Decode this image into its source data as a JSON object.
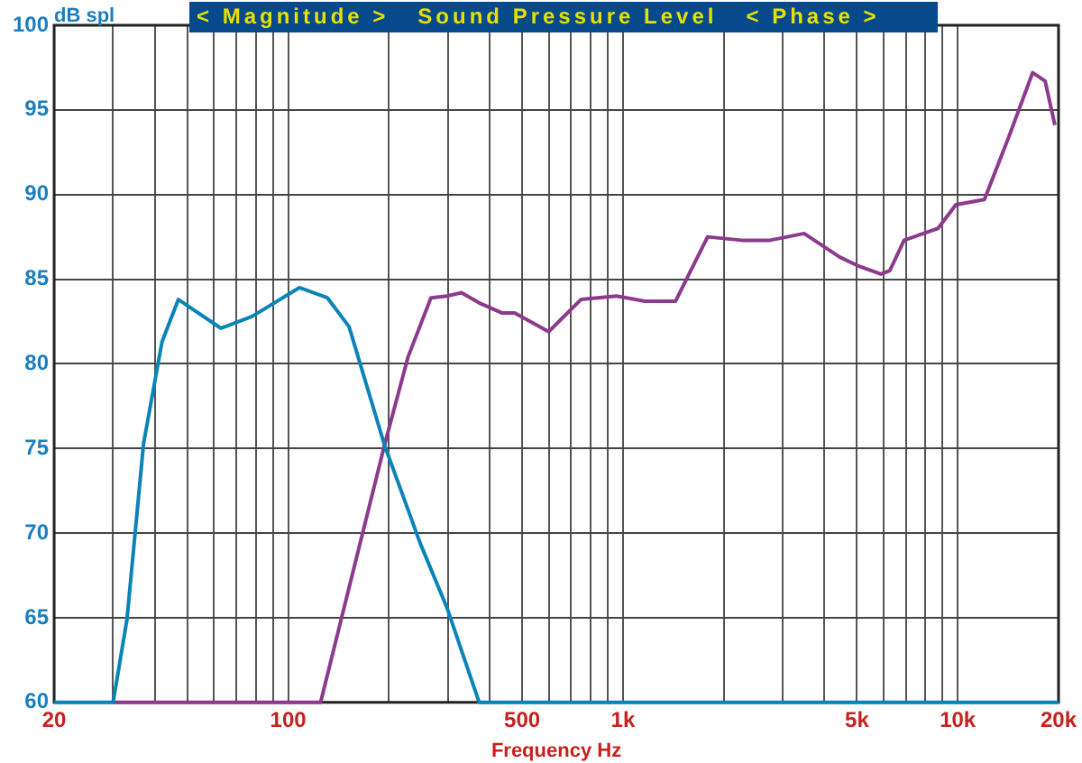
{
  "chart_data": {
    "type": "line",
    "title": "< Magnitude >   Sound Pressure Level   < Phase >",
    "ylabel": "dB spl",
    "xlabel": "Frequency Hz",
    "log": "x",
    "grid": true,
    "legend": false,
    "xlim": [
      20,
      20000
    ],
    "ylim": [
      60,
      100
    ],
    "xticks": [
      {
        "value": 20,
        "label": "20"
      },
      {
        "value": 30,
        "label": null
      },
      {
        "value": 40,
        "label": null
      },
      {
        "value": 50,
        "label": null
      },
      {
        "value": 60,
        "label": null
      },
      {
        "value": 70,
        "label": null
      },
      {
        "value": 80,
        "label": null
      },
      {
        "value": 90,
        "label": null
      },
      {
        "value": 100,
        "label": "100"
      },
      {
        "value": 200,
        "label": null
      },
      {
        "value": 300,
        "label": null
      },
      {
        "value": 400,
        "label": null
      },
      {
        "value": 500,
        "label": "500"
      },
      {
        "value": 600,
        "label": null
      },
      {
        "value": 700,
        "label": null
      },
      {
        "value": 800,
        "label": null
      },
      {
        "value": 900,
        "label": null
      },
      {
        "value": 1000,
        "label": "1k"
      },
      {
        "value": 2000,
        "label": null
      },
      {
        "value": 3000,
        "label": null
      },
      {
        "value": 4000,
        "label": null
      },
      {
        "value": 5000,
        "label": "5k"
      },
      {
        "value": 6000,
        "label": null
      },
      {
        "value": 7000,
        "label": null
      },
      {
        "value": 8000,
        "label": null
      },
      {
        "value": 9000,
        "label": null
      },
      {
        "value": 10000,
        "label": "10k"
      },
      {
        "value": 20000,
        "label": "20k"
      }
    ],
    "yticks": [
      60,
      65,
      70,
      75,
      80,
      85,
      90,
      95,
      100
    ],
    "series": [
      {
        "color": "#0a84b8",
        "x": [
          20,
          30,
          33,
          37,
          42,
          47,
          63,
          78,
          108,
          131,
          152,
          194,
          248,
          298,
          372,
          20000
        ],
        "values": [
          60,
          60,
          64.9,
          75.3,
          81.3,
          83.8,
          82.1,
          82.8,
          84.5,
          83.9,
          82.2,
          75.2,
          69.4,
          65.6,
          60,
          60
        ]
      },
      {
        "color": "#8c3a8c",
        "x": [
          30,
          125,
          144,
          194,
          228,
          267,
          298,
          329,
          372,
          436,
          475,
          600,
          749,
          957,
          1165,
          1436,
          1790,
          2262,
          2752,
          3476,
          4444,
          5024,
          5894,
          6266,
          6914,
          8730,
          9872,
          12012,
          14268,
          16740,
          18240,
          19500
        ],
        "values": [
          60,
          60,
          64.9,
          75.2,
          80.4,
          83.9,
          84.0,
          84.2,
          83.6,
          83.0,
          83.0,
          81.9,
          83.8,
          84.0,
          83.7,
          83.7,
          87.5,
          87.3,
          87.3,
          87.7,
          86.3,
          85.8,
          85.3,
          85.5,
          87.3,
          88.0,
          89.4,
          89.7,
          93.5,
          97.2,
          96.7,
          94.1
        ]
      }
    ]
  }
}
